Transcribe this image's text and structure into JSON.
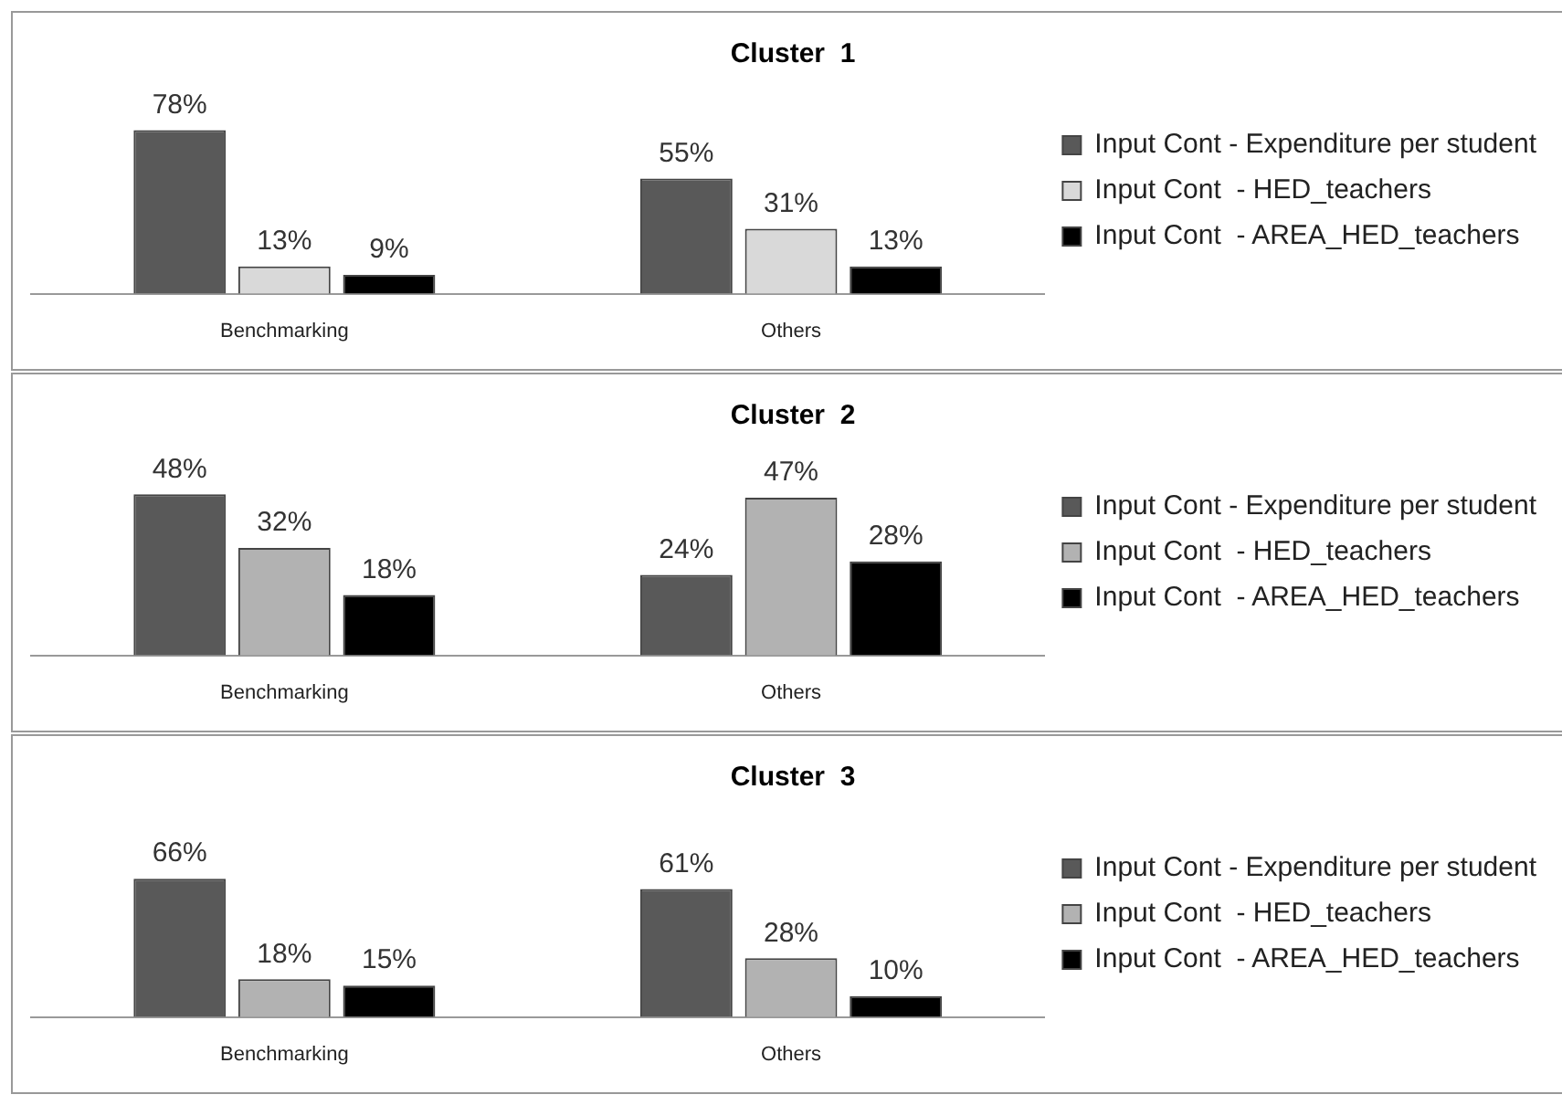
{
  "chart_data": [
    {
      "type": "bar",
      "title": "Cluster  1",
      "categories": [
        "Benchmarking",
        "Others"
      ],
      "legend": "right",
      "grid": false,
      "tick_labels": "x",
      "series": [
        {
          "name": "Input Cont - Expenditure per student",
          "color": "#595959",
          "values": [
            78,
            55
          ],
          "value_labels": [
            "78%",
            "55%"
          ]
        },
        {
          "name": "Input Cont  - HED_teachers",
          "color": "#d9d9d9",
          "values": [
            13,
            31
          ],
          "value_labels": [
            "13%",
            "31%"
          ]
        },
        {
          "name": "Input Cont  - AREA_HED_teachers",
          "color": "#000000",
          "values": [
            9,
            13
          ],
          "value_labels": [
            "9%",
            "13%"
          ]
        }
      ]
    },
    {
      "type": "bar",
      "title": "Cluster  2",
      "categories": [
        "Benchmarking",
        "Others"
      ],
      "legend": "right",
      "grid": false,
      "tick_labels": "x",
      "series": [
        {
          "name": "Input Cont - Expenditure per student",
          "color": "#595959",
          "values": [
            48,
            24
          ],
          "value_labels": [
            "48%",
            "24%"
          ]
        },
        {
          "name": "Input Cont  - HED_teachers",
          "color": "#b2b2b2",
          "values": [
            32,
            47
          ],
          "value_labels": [
            "32%",
            "47%"
          ]
        },
        {
          "name": "Input Cont  - AREA_HED_teachers",
          "color": "#000000",
          "values": [
            18,
            28
          ],
          "value_labels": [
            "18%",
            "28%"
          ]
        }
      ]
    },
    {
      "type": "bar",
      "title": "Cluster  3",
      "categories": [
        "Benchmarking",
        "Others"
      ],
      "legend": "right",
      "grid": false,
      "tick_labels": "x",
      "series": [
        {
          "name": "Input Cont - Expenditure per student",
          "color": "#595959",
          "values": [
            66,
            61
          ],
          "value_labels": [
            "66%",
            "61%"
          ]
        },
        {
          "name": "Input Cont  - HED_teachers",
          "color": "#b2b2b2",
          "values": [
            18,
            28
          ],
          "value_labels": [
            "18%",
            "28%"
          ]
        },
        {
          "name": "Input Cont  - AREA_HED_teachers",
          "color": "#000000",
          "values": [
            15,
            10
          ],
          "value_labels": [
            "15%",
            "10%"
          ]
        }
      ]
    }
  ]
}
